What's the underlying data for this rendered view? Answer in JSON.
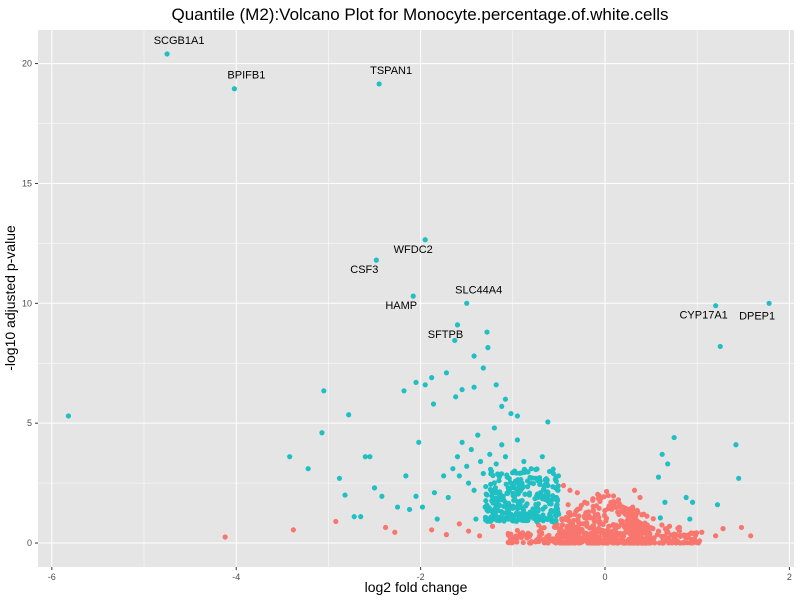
{
  "chart_data": {
    "type": "scatter",
    "title": "Quantile (M2):Volcano Plot for Monocyte.percentage.of.white.cells",
    "xlabel": "log2 fold change",
    "ylabel": "-log10 adjusted p-value",
    "xlim": [
      -6.15,
      2.05
    ],
    "ylim": [
      -1.0,
      21.4
    ],
    "xticks": [
      -6,
      -4,
      -2,
      0,
      2
    ],
    "yticks": [
      0,
      5,
      10,
      15,
      20
    ],
    "xtick_labels": [
      "-6",
      "-4",
      "-2",
      "0",
      "2"
    ],
    "ytick_labels": [
      "0",
      "5",
      "10",
      "15",
      "20"
    ],
    "grid": true,
    "legend": "none",
    "colors": {
      "background": "#e5e5e5",
      "grid": "#ffffff",
      "significant": "#1fbfc3",
      "not_significant": "#f8766d"
    },
    "labeled_points": [
      {
        "label": "SCGB1A1",
        "x": -4.75,
        "y": 20.4
      },
      {
        "label": "BPIFB1",
        "x": -4.02,
        "y": 18.95
      },
      {
        "label": "TSPAN1",
        "x": -2.45,
        "y": 19.15
      },
      {
        "label": "WFDC2",
        "x": -1.95,
        "y": 12.65
      },
      {
        "label": "CSF3",
        "x": -2.48,
        "y": 11.8
      },
      {
        "label": "HAMP",
        "x": -2.08,
        "y": 10.3
      },
      {
        "label": "SLC44A4",
        "x": -1.5,
        "y": 10.0
      },
      {
        "label": "SFTPB",
        "x": -1.6,
        "y": 9.1
      },
      {
        "label": "CYP17A1",
        "x": 1.2,
        "y": 9.9
      },
      {
        "label": "DPEP1",
        "x": 1.78,
        "y": 10.0
      }
    ],
    "significant_points": [
      [
        -5.82,
        5.3
      ],
      [
        -3.05,
        6.35
      ],
      [
        -3.07,
        4.6
      ],
      [
        -3.42,
        3.6
      ],
      [
        -3.22,
        3.1
      ],
      [
        -2.78,
        5.35
      ],
      [
        -2.6,
        3.6
      ],
      [
        -2.55,
        3.6
      ],
      [
        -2.18,
        6.35
      ],
      [
        -2.05,
        6.7
      ],
      [
        -1.95,
        6.6
      ],
      [
        -1.88,
        6.9
      ],
      [
        -1.86,
        5.8
      ],
      [
        -1.72,
        7.1
      ],
      [
        -1.62,
        6.1
      ],
      [
        -1.55,
        6.4
      ],
      [
        -1.42,
        6.5
      ],
      [
        -1.32,
        7.3
      ],
      [
        -1.28,
        8.8
      ],
      [
        -1.27,
        8.15
      ],
      [
        -1.63,
        8.45
      ],
      [
        -1.42,
        7.8
      ],
      [
        -1.18,
        6.6
      ],
      [
        -1.12,
        5.7
      ],
      [
        -1.08,
        6.0
      ],
      [
        -1.02,
        5.4
      ],
      [
        -0.95,
        5.3
      ],
      [
        -0.62,
        5.05
      ],
      [
        -2.88,
        2.7
      ],
      [
        -2.82,
        2.0
      ],
      [
        -2.72,
        1.1
      ],
      [
        -2.65,
        1.1
      ],
      [
        -2.5,
        2.3
      ],
      [
        -2.42,
        1.95
      ],
      [
        -2.25,
        1.5
      ],
      [
        -2.16,
        2.8
      ],
      [
        -2.12,
        1.4
      ],
      [
        -2.05,
        1.95
      ],
      [
        -2.02,
        4.2
      ],
      [
        -1.98,
        1.5
      ],
      [
        -1.85,
        2.1
      ],
      [
        -1.82,
        1.0
      ],
      [
        -1.75,
        2.8
      ],
      [
        -1.7,
        1.9
      ],
      [
        -1.65,
        3.1
      ],
      [
        -1.6,
        3.6
      ],
      [
        -1.58,
        2.8
      ],
      [
        -1.55,
        4.2
      ],
      [
        -1.5,
        3.2
      ],
      [
        -1.48,
        2.5
      ],
      [
        -1.45,
        3.9
      ],
      [
        -1.42,
        2.2
      ],
      [
        -1.38,
        4.5
      ],
      [
        -1.35,
        3.4
      ],
      [
        -1.32,
        2.9
      ],
      [
        -1.28,
        2.0
      ],
      [
        -1.25,
        3.7
      ],
      [
        -1.22,
        1.3
      ],
      [
        -1.2,
        4.8
      ],
      [
        -1.18,
        3.3
      ],
      [
        -1.15,
        2.6
      ],
      [
        -1.12,
        4.1
      ],
      [
        -1.1,
        1.8
      ],
      [
        -1.08,
        3.6
      ],
      [
        -1.05,
        2.3
      ],
      [
        -1.02,
        1.2
      ],
      [
        -0.98,
        3.0
      ],
      [
        -0.95,
        4.3
      ],
      [
        -0.92,
        1.6
      ],
      [
        -0.9,
        2.5
      ],
      [
        -0.88,
        3.4
      ],
      [
        -0.85,
        1.0
      ],
      [
        -0.82,
        2.0
      ],
      [
        -0.8,
        3.1
      ],
      [
        -0.78,
        1.4
      ],
      [
        -0.75,
        2.7
      ],
      [
        -0.72,
        1.1
      ],
      [
        -0.7,
        2.1
      ],
      [
        -0.68,
        3.6
      ],
      [
        -0.65,
        1.5
      ],
      [
        -0.62,
        2.4
      ],
      [
        -0.6,
        1.2
      ],
      [
        -0.58,
        1.8
      ],
      [
        -0.56,
        2.9
      ],
      [
        -0.54,
        1.3
      ],
      [
        -0.52,
        1.6
      ],
      [
        -0.51,
        2.2
      ],
      [
        -1.4,
        1.0
      ],
      [
        -1.3,
        1.5
      ],
      [
        -1.1,
        0.95
      ],
      [
        -0.96,
        1.25
      ],
      [
        -0.86,
        1.55
      ],
      [
        -0.74,
        0.9
      ],
      [
        -0.66,
        1.05
      ],
      [
        -0.57,
        0.95
      ],
      [
        -1.24,
        2.45
      ],
      [
        -1.16,
        1.75
      ],
      [
        -1.06,
        2.75
      ],
      [
        -1.0,
        1.45
      ],
      [
        -0.94,
        2.05
      ],
      [
        -0.84,
        2.35
      ],
      [
        -0.76,
        1.85
      ],
      [
        -0.64,
        1.95
      ],
      [
        -0.55,
        1.35
      ],
      [
        0.75,
        4.4
      ],
      [
        0.62,
        3.7
      ],
      [
        0.68,
        3.3
      ],
      [
        0.58,
        2.75
      ],
      [
        0.65,
        1.7
      ],
      [
        0.88,
        1.9
      ],
      [
        0.95,
        1.7
      ],
      [
        1.25,
        8.2
      ],
      [
        1.42,
        4.1
      ],
      [
        1.45,
        2.7
      ],
      [
        1.22,
        1.6
      ],
      [
        0.92,
        1.0
      ],
      [
        0.6,
        1.05
      ]
    ],
    "nonsignificant_points": [
      [
        -4.12,
        0.25
      ],
      [
        -3.38,
        0.55
      ],
      [
        -2.92,
        0.9
      ],
      [
        -2.38,
        0.65
      ],
      [
        -2.28,
        0.45
      ],
      [
        -1.88,
        0.55
      ],
      [
        -1.72,
        0.35
      ],
      [
        -1.58,
        0.8
      ],
      [
        -1.48,
        0.5
      ],
      [
        -1.36,
        0.3
      ],
      [
        -1.22,
        0.7
      ],
      [
        -1.05,
        0.4
      ],
      [
        -0.45,
        2.4
      ],
      [
        -0.38,
        2.2
      ],
      [
        -0.3,
        2.1
      ],
      [
        -0.22,
        1.7
      ],
      [
        -0.4,
        1.6
      ],
      [
        -0.18,
        1.3
      ],
      [
        0.32,
        2.2
      ],
      [
        0.38,
        1.9
      ],
      [
        0.3,
        1.5
      ],
      [
        0.42,
        1.2
      ],
      [
        0.52,
        0.6
      ],
      [
        0.7,
        0.7
      ],
      [
        0.82,
        0.3
      ],
      [
        1.05,
        0.45
      ],
      [
        1.2,
        0.3
      ],
      [
        1.28,
        0.6
      ],
      [
        1.48,
        0.65
      ],
      [
        1.58,
        0.3
      ],
      [
        -0.48,
        0.6
      ],
      [
        -0.42,
        1.0
      ],
      [
        -0.36,
        0.75
      ],
      [
        -0.28,
        0.55
      ],
      [
        -0.2,
        0.85
      ],
      [
        -0.12,
        0.45
      ],
      [
        -0.06,
        0.25
      ],
      [
        0.06,
        0.2
      ],
      [
        0.12,
        0.45
      ],
      [
        0.2,
        0.75
      ],
      [
        0.26,
        0.5
      ],
      [
        0.34,
        0.95
      ],
      [
        0.46,
        0.35
      ],
      [
        0.58,
        0.5
      ]
    ]
  }
}
